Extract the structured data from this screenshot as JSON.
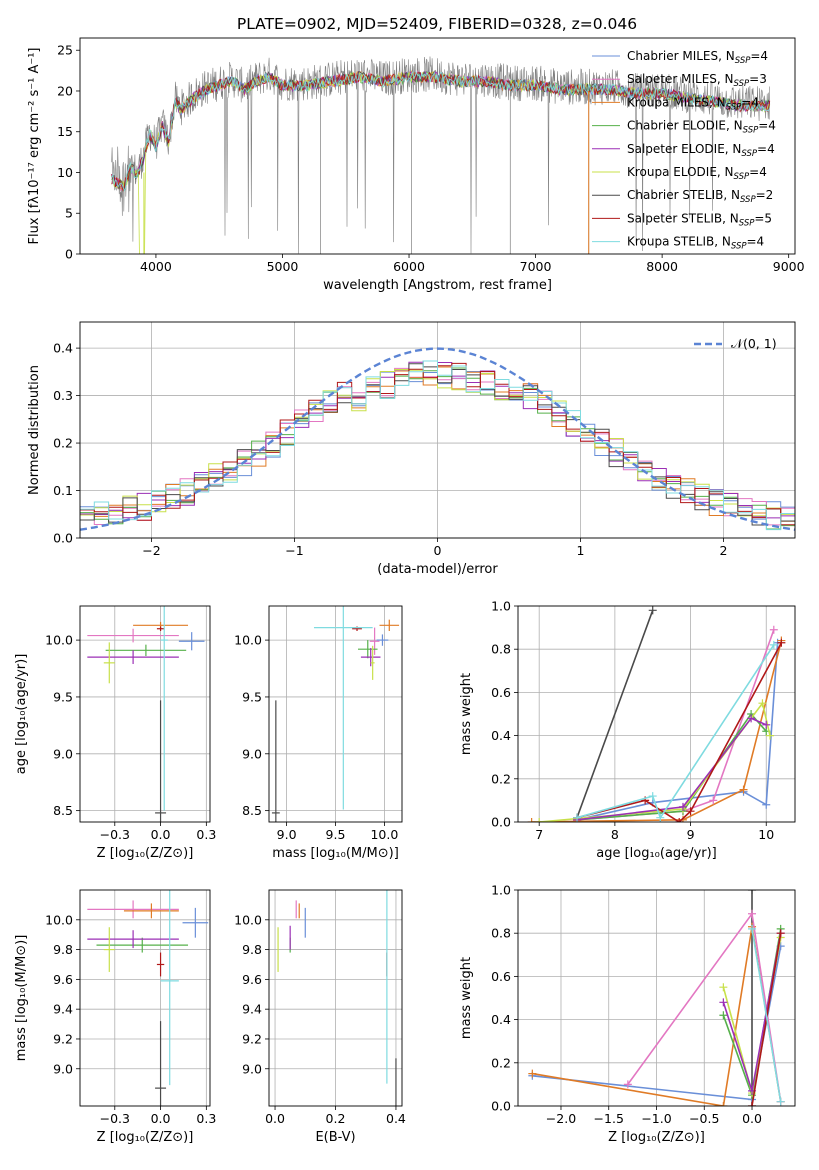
{
  "figure_title": "PLATE=0902, MJD=52409, FIBERID=0328, z=0.046",
  "colors": {
    "Chabrier MILES": "#6a8fd8",
    "Salpeter MILES": "#e377c2",
    "Kroupa MILES": "#e07b26",
    "Chabrier ELODIE": "#56b04a",
    "Salpeter ELODIE": "#9b2fb5",
    "Kroupa ELODIE": "#c8e04a",
    "Chabrier STELIB": "#4a4a4a",
    "Salpeter STELIB": "#b01818",
    "Kroupa STELIB": "#7fdbe0",
    "data": "#7f7f7f"
  },
  "chart_data": [
    {
      "id": "spectrum",
      "type": "line",
      "title": "PLATE=0902, MJD=52409, FIBERID=0328, z=0.046",
      "xlabel": "wavelength [Angstrom, rest frame]",
      "ylabel": "Flux [fλ10⁻¹⁷ erg cm⁻² s⁻¹ A⁻¹]",
      "xlim": [
        3400,
        9050
      ],
      "ylim": [
        0,
        26.5
      ],
      "xticks": [
        4000,
        5000,
        6000,
        7000,
        8000,
        9000
      ],
      "yticks": [
        0,
        5,
        10,
        15,
        20,
        25
      ],
      "grid": false,
      "legend": "top-right",
      "data_envelope": {
        "x": [
          3650,
          3700,
          3750,
          3800,
          3850,
          3900,
          3950,
          4000,
          4050,
          4100,
          4150,
          4200,
          4300,
          4400,
          4500,
          4600,
          4700,
          4800,
          4900,
          5000,
          5200,
          5400,
          5600,
          5800,
          6000,
          6200,
          6400,
          6600,
          6800,
          7000,
          7200,
          7400,
          7600,
          7800,
          8000,
          8200,
          8400,
          8600,
          8800
        ],
        "y": [
          9.5,
          9.0,
          8.5,
          11.0,
          10.0,
          12.0,
          15.0,
          13.5,
          16.0,
          14.0,
          19.0,
          18.0,
          19.5,
          20.5,
          21.0,
          21.5,
          20.5,
          21.5,
          22.0,
          21.0,
          21.0,
          21.5,
          22.0,
          21.5,
          22.0,
          22.0,
          21.5,
          21.5,
          21.0,
          21.0,
          20.5,
          20.5,
          20.5,
          20.0,
          20.0,
          19.5,
          19.0,
          18.5,
          18.5
        ]
      },
      "series": [
        {
          "name": "Chabrier MILES, N_SSP=4",
          "label": "Chabrier MILES, N",
          "sub": "SSP",
          "value": "=4"
        },
        {
          "name": "Salpeter MILES, N_SSP=3",
          "label": "Salpeter MILES, N",
          "sub": "SSP",
          "value": "=3"
        },
        {
          "name": "Kroupa MILES, N_SSP=4",
          "label": "Kroupa MILES, N",
          "sub": "SSP",
          "value": "=4"
        },
        {
          "name": "Chabrier ELODIE, N_SSP=4",
          "label": "Chabrier ELODIE, N",
          "sub": "SSP",
          "value": "=4"
        },
        {
          "name": "Salpeter ELODIE, N_SSP=4",
          "label": "Salpeter ELODIE, N",
          "sub": "SSP",
          "value": "=4"
        },
        {
          "name": "Kroupa ELODIE, N_SSP=4",
          "label": "Kroupa ELODIE, N",
          "sub": "SSP",
          "value": "=4"
        },
        {
          "name": "Chabrier STELIB, N_SSP=2",
          "label": "Chabrier STELIB, N",
          "sub": "SSP",
          "value": "=2"
        },
        {
          "name": "Salpeter STELIB, N_SSP=5",
          "label": "Salpeter STELIB, N",
          "sub": "SSP",
          "value": "=5"
        },
        {
          "name": "Kroupa STELIB, N_SSP=4",
          "label": "Kroupa STELIB, N",
          "sub": "SSP",
          "value": "=4"
        }
      ]
    },
    {
      "id": "residuals",
      "type": "line",
      "xlabel": "(data-model)/error",
      "ylabel": "Normed distribution",
      "xlim": [
        -2.5,
        2.5
      ],
      "ylim": [
        0,
        0.455
      ],
      "xticks": [
        -2,
        -1,
        0,
        1,
        2
      ],
      "yticks": [
        0.0,
        0.1,
        0.2,
        0.3,
        0.4
      ],
      "grid": true,
      "legend": "top-right",
      "reference_curve": "N(0,1)",
      "legend_label": "𝒩(0, 1)"
    },
    {
      "id": "age_vs_Z",
      "type": "scatter",
      "xlabel": "Z [log₁₀(Z/Z⊙)]",
      "ylabel": "age  [log₁₀(age/yr)]",
      "xlim": [
        -0.44,
        0.27
      ],
      "ylim": [
        8.4,
        10.3
      ],
      "xticks": [
        -0.25,
        0.0,
        0.25
      ],
      "yticks": [
        8.5,
        9.0,
        9.5,
        10.0
      ],
      "grid": true,
      "points": [
        {
          "model": "Chabrier MILES",
          "x": 0.17,
          "y": 9.99,
          "xerr": 0.07,
          "yerr": 0.08
        },
        {
          "model": "Salpeter MILES",
          "x": -0.15,
          "y": 10.04,
          "xerr": 0.25,
          "yerr": 0.06
        },
        {
          "model": "Kroupa MILES",
          "x": 0.0,
          "y": 10.13,
          "xerr": 0.15,
          "yerr": 0.03
        },
        {
          "model": "Chabrier ELODIE",
          "x": -0.08,
          "y": 9.91,
          "xerr": 0.22,
          "yerr": 0.05
        },
        {
          "model": "Salpeter ELODIE",
          "x": -0.15,
          "y": 9.85,
          "xerr": 0.25,
          "yerr": 0.06
        },
        {
          "model": "Kroupa ELODIE",
          "x": -0.28,
          "y": 9.8,
          "xerr": 0.03,
          "yerr": 0.18
        },
        {
          "model": "Chabrier STELIB",
          "x": 0.0,
          "y": 8.48,
          "xerr": 0.03,
          "yerr": 0.99
        },
        {
          "model": "Salpeter STELIB",
          "x": 0.0,
          "y": 10.1,
          "xerr": 0.02,
          "yerr": 0.02
        },
        {
          "model": "Kroupa STELIB",
          "x": 0.02,
          "y": 10.0,
          "xerr": 0.02,
          "yerr": 1.5
        }
      ]
    },
    {
      "id": "age_vs_mass",
      "type": "scatter",
      "xlabel": "mass [log₁₀(M/M⊙)]",
      "ylabel": "",
      "xlim": [
        8.82,
        10.18
      ],
      "ylim": [
        8.4,
        10.3
      ],
      "xticks": [
        9.0,
        9.5,
        10.0
      ],
      "yticks": [
        8.5,
        9.0,
        9.5,
        10.0
      ],
      "grid": true,
      "points": [
        {
          "model": "Chabrier MILES",
          "x": 9.98,
          "y": 10.0,
          "xerr": 0.06,
          "yerr": 0.05
        },
        {
          "model": "Salpeter MILES",
          "x": 9.9,
          "y": 9.99,
          "xerr": 0.05,
          "yerr": 0.12
        },
        {
          "model": "Kroupa MILES",
          "x": 10.05,
          "y": 10.13,
          "xerr": 0.1,
          "yerr": 0.05
        },
        {
          "model": "Chabrier ELODIE",
          "x": 9.83,
          "y": 9.92,
          "xerr": 0.1,
          "yerr": 0.08
        },
        {
          "model": "Salpeter ELODIE",
          "x": 9.86,
          "y": 9.85,
          "xerr": 0.1,
          "yerr": 0.08
        },
        {
          "model": "Kroupa ELODIE",
          "x": 9.88,
          "y": 9.8,
          "xerr": 0.02,
          "yerr": 0.15
        },
        {
          "model": "Chabrier STELIB",
          "x": 8.89,
          "y": 8.48,
          "xerr": 0.04,
          "yerr": 0.99
        },
        {
          "model": "Salpeter STELIB",
          "x": 9.72,
          "y": 10.1,
          "xerr": 0.05,
          "yerr": 0.02
        },
        {
          "model": "Kroupa STELIB",
          "x": 9.58,
          "y": 10.11,
          "xerr": 0.3,
          "yerr": 1.6
        }
      ]
    },
    {
      "id": "massweight_vs_age",
      "type": "line",
      "xlabel": "age  [log₁₀(age/yr)]",
      "ylabel": "mass weight",
      "xlim": [
        6.72,
        10.38
      ],
      "ylim": [
        0.0,
        1.0
      ],
      "xticks": [
        7,
        8,
        9,
        10
      ],
      "yticks": [
        0.0,
        0.2,
        0.4,
        0.6,
        0.8,
        1.0
      ],
      "grid": true,
      "series": [
        {
          "model": "Chabrier STELIB",
          "x": [
            7.5,
            8.5
          ],
          "y": [
            0.02,
            0.98
          ]
        },
        {
          "model": "Chabrier MILES",
          "x": [
            7.5,
            8.5,
            9.7,
            10.0,
            10.15
          ],
          "y": [
            0.01,
            0.09,
            0.14,
            0.08,
            0.83
          ]
        },
        {
          "model": "Kroupa MILES",
          "x": [
            6.9,
            8.9,
            9.7,
            10.2
          ],
          "y": [
            0.0,
            0.01,
            0.15,
            0.84
          ]
        },
        {
          "model": "Salpeter MILES",
          "x": [
            7.5,
            8.9,
            9.3,
            10.1
          ],
          "y": [
            0.01,
            0.05,
            0.1,
            0.89
          ]
        },
        {
          "model": "Chabrier ELODIE",
          "x": [
            7.5,
            8.9,
            9.8,
            10.0
          ],
          "y": [
            0.01,
            0.05,
            0.5,
            0.42
          ]
        },
        {
          "model": "Kroupa ELODIE",
          "x": [
            7.0,
            8.9,
            9.95,
            10.05
          ],
          "y": [
            0.0,
            0.06,
            0.55,
            0.4
          ]
        },
        {
          "model": "Salpeter ELODIE",
          "x": [
            7.5,
            8.9,
            9.8,
            10.0
          ],
          "y": [
            0.01,
            0.07,
            0.48,
            0.45
          ]
        },
        {
          "model": "Salpeter STELIB",
          "x": [
            7.5,
            8.4,
            8.85,
            9.0,
            10.2
          ],
          "y": [
            0.02,
            0.1,
            0.0,
            0.05,
            0.83
          ]
        },
        {
          "model": "Kroupa STELIB",
          "x": [
            7.5,
            8.5,
            8.6,
            10.1
          ],
          "y": [
            0.02,
            0.12,
            0.02,
            0.82
          ]
        }
      ]
    },
    {
      "id": "mass_vs_Z",
      "type": "scatter",
      "xlabel": "Z [log₁₀(Z/Z⊙)]",
      "ylabel": "mass [log₁₀(M/M⊙)]",
      "xlim": [
        -0.44,
        0.27
      ],
      "ylim": [
        8.75,
        10.2
      ],
      "xticks": [
        -0.25,
        0.0,
        0.25
      ],
      "yticks": [
        9.0,
        9.2,
        9.4,
        9.6,
        9.8,
        10.0
      ],
      "grid": true,
      "points": [
        {
          "model": "Chabrier MILES",
          "x": 0.19,
          "y": 9.98,
          "xerr": 0.07,
          "yerr": 0.1
        },
        {
          "model": "Salpeter MILES",
          "x": -0.15,
          "y": 10.07,
          "xerr": 0.25,
          "yerr": 0.06
        },
        {
          "model": "Kroupa MILES",
          "x": -0.05,
          "y": 10.06,
          "xerr": 0.15,
          "yerr": 0.05
        },
        {
          "model": "Chabrier ELODIE",
          "x": -0.1,
          "y": 9.83,
          "xerr": 0.25,
          "yerr": 0.05
        },
        {
          "model": "Salpeter ELODIE",
          "x": -0.15,
          "y": 9.87,
          "xerr": 0.25,
          "yerr": 0.06
        },
        {
          "model": "Kroupa ELODIE",
          "x": -0.28,
          "y": 9.8,
          "xerr": 0.03,
          "yerr": 0.15
        },
        {
          "model": "Chabrier STELIB",
          "x": 0.0,
          "y": 8.87,
          "xerr": 0.03,
          "yerr": 0.45
        },
        {
          "model": "Salpeter STELIB",
          "x": 0.0,
          "y": 9.7,
          "xerr": 0.02,
          "yerr": 0.08
        },
        {
          "model": "Kroupa STELIB",
          "x": 0.05,
          "y": 9.59,
          "xerr": 0.05,
          "yerr": 0.7
        }
      ]
    },
    {
      "id": "mass_vs_EBV",
      "type": "scatter",
      "xlabel": "E(B-V)",
      "ylabel": "",
      "xlim": [
        -0.02,
        0.42
      ],
      "ylim": [
        8.75,
        10.2
      ],
      "xticks": [
        0.0,
        0.2,
        0.4
      ],
      "yticks": [
        9.0,
        9.2,
        9.4,
        9.6,
        9.8,
        10.0
      ],
      "grid": true,
      "points": [
        {
          "model": "Chabrier MILES",
          "x": 0.1,
          "y": 9.98,
          "xerr": 0.0,
          "yerr": 0.1
        },
        {
          "model": "Salpeter MILES",
          "x": 0.07,
          "y": 10.07,
          "xerr": 0.0,
          "yerr": 0.06
        },
        {
          "model": "Kroupa MILES",
          "x": 0.08,
          "y": 10.06,
          "xerr": 0.0,
          "yerr": 0.05
        },
        {
          "model": "Chabrier ELODIE",
          "x": 0.05,
          "y": 9.83,
          "xerr": 0.0,
          "yerr": 0.05
        },
        {
          "model": "Salpeter ELODIE",
          "x": 0.05,
          "y": 9.88,
          "xerr": 0.0,
          "yerr": 0.08
        },
        {
          "model": "Kroupa ELODIE",
          "x": 0.01,
          "y": 9.8,
          "xerr": 0.0,
          "yerr": 0.15
        },
        {
          "model": "Chabrier STELIB",
          "x": 0.4,
          "y": 8.87,
          "xerr": 0.0,
          "yerr": 0.2
        },
        {
          "model": "Salpeter STELIB",
          "x": 0.37,
          "y": 9.7,
          "xerr": 0.0,
          "yerr": 0.08
        },
        {
          "model": "Kroupa STELIB",
          "x": 0.37,
          "y": 9.6,
          "xerr": 0.0,
          "yerr": 0.7
        }
      ]
    },
    {
      "id": "massweight_vs_Z",
      "type": "line",
      "xlabel": "Z [log₁₀(Z/Z⊙)]",
      "ylabel": "mass weight",
      "xlim": [
        -2.45,
        0.45
      ],
      "ylim": [
        0.0,
        1.0
      ],
      "xticks": [
        -2.0,
        -1.5,
        -1.0,
        -0.5,
        0.0
      ],
      "yticks": [
        0.0,
        0.2,
        0.4,
        0.6,
        0.8,
        1.0
      ],
      "grid": true,
      "series": [
        {
          "model": "Chabrier STELIB",
          "x": [
            0.0,
            0.0
          ],
          "y": [
            0.0,
            1.0
          ]
        },
        {
          "model": "Chabrier MILES",
          "x": [
            -2.3,
            0.0,
            0.3
          ],
          "y": [
            0.14,
            0.03,
            0.74
          ]
        },
        {
          "model": "Kroupa MILES",
          "x": [
            -2.3,
            -0.3,
            0.0,
            0.3
          ],
          "y": [
            0.15,
            0.0,
            0.83,
            0.02
          ]
        },
        {
          "model": "Salpeter MILES",
          "x": [
            -1.3,
            0.0,
            0.3
          ],
          "y": [
            0.1,
            0.89,
            0.02
          ]
        },
        {
          "model": "Chabrier ELODIE",
          "x": [
            -0.3,
            0.0,
            0.3
          ],
          "y": [
            0.42,
            0.05,
            0.82
          ]
        },
        {
          "model": "Kroupa ELODIE",
          "x": [
            -0.3,
            0.0,
            0.3
          ],
          "y": [
            0.55,
            0.06,
            0.78
          ]
        },
        {
          "model": "Salpeter ELODIE",
          "x": [
            -0.3,
            0.0,
            0.3
          ],
          "y": [
            0.48,
            0.07,
            0.8
          ]
        },
        {
          "model": "Salpeter STELIB",
          "x": [
            0.0,
            0.3
          ],
          "y": [
            0.0,
            0.8
          ]
        },
        {
          "model": "Kroupa STELIB",
          "x": [
            0.0,
            0.3
          ],
          "y": [
            0.82,
            0.02
          ]
        }
      ]
    }
  ]
}
